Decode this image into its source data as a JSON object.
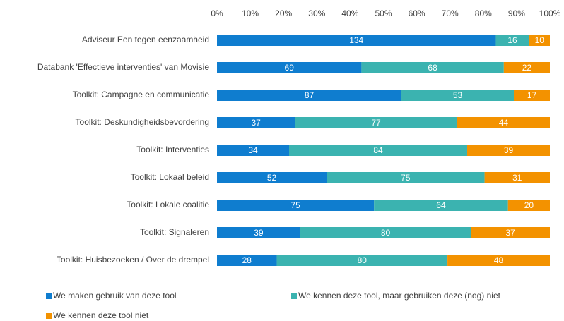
{
  "chart_data": {
    "type": "bar",
    "orientation": "horizontal",
    "stacking": "percent",
    "categories": [
      "Adviseur Een tegen eenzaamheid",
      "Databank 'Effectieve interventies' van Movisie",
      "Toolkit: Campagne en communicatie",
      "Toolkit: Deskundigheidsbevordering",
      "Toolkit: Interventies",
      "Toolkit: Lokaal beleid",
      "Toolkit: Lokale coalitie",
      "Toolkit: Signaleren",
      "Toolkit: Huisbezoeken / Over de drempel"
    ],
    "series": [
      {
        "name": "We maken gebruik van deze tool",
        "color": "#0f7dcf",
        "values": [
          134,
          69,
          87,
          37,
          34,
          52,
          75,
          39,
          28
        ]
      },
      {
        "name": "We kennen deze tool, maar gebruiken deze (nog) niet",
        "color": "#3bb3b0",
        "values": [
          16,
          68,
          53,
          77,
          84,
          75,
          64,
          80,
          80
        ]
      },
      {
        "name": "We kennen deze tool niet",
        "color": "#f39200",
        "values": [
          10,
          22,
          17,
          44,
          39,
          31,
          20,
          37,
          48
        ]
      }
    ],
    "xlim": [
      0,
      100
    ],
    "xticks": [
      {
        "value": 0,
        "label": "0%"
      },
      {
        "value": 10,
        "label": "10%"
      },
      {
        "value": 20,
        "label": "20%"
      },
      {
        "value": 30,
        "label": "30%"
      },
      {
        "value": 40,
        "label": "40%"
      },
      {
        "value": 50,
        "label": "50%"
      },
      {
        "value": 60,
        "label": "60%"
      },
      {
        "value": 70,
        "label": "70%"
      },
      {
        "value": 80,
        "label": "80%"
      },
      {
        "value": 90,
        "label": "90%"
      },
      {
        "value": 100,
        "label": "100%"
      }
    ],
    "grid": false,
    "legend": "bottom"
  }
}
